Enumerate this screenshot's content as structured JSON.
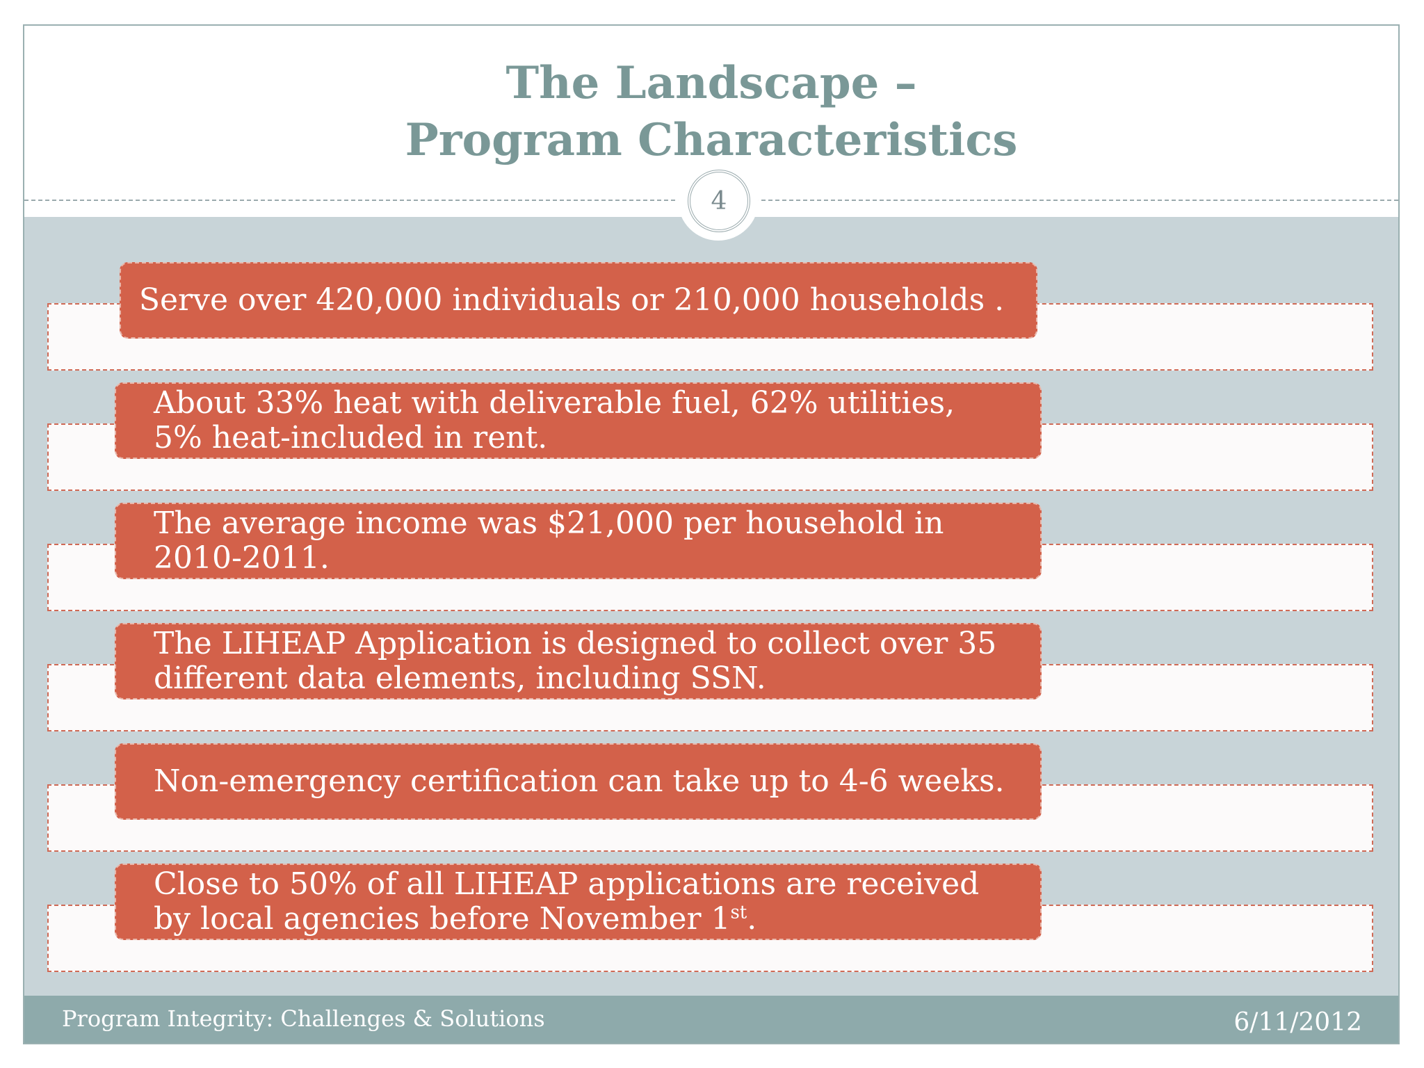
{
  "slide": {
    "title_line1": "The Landscape –",
    "title_line2": "Program Characteristics",
    "page_number": "4",
    "items": [
      {
        "text": "Serve over 420,000 individuals or 210,000 households ."
      },
      {
        "text": "About 33% heat with deliverable fuel, 62% utilities, 5% heat-included in rent."
      },
      {
        "text": "The average income was $21,000 per household in 2010-2011."
      },
      {
        "text": "The LIHEAP Application is designed to collect over 35 different data elements, including SSN."
      },
      {
        "text": "Non-emergency certification can take up to 4-6 weeks."
      },
      {
        "text": "Close to 50% of all LIHEAP applications are received by local agencies before November 1",
        "sup": "st",
        "suffix": "."
      }
    ]
  },
  "footer": {
    "left": "Program Integrity: Challenges & Solutions",
    "right": "6/11/2012"
  }
}
